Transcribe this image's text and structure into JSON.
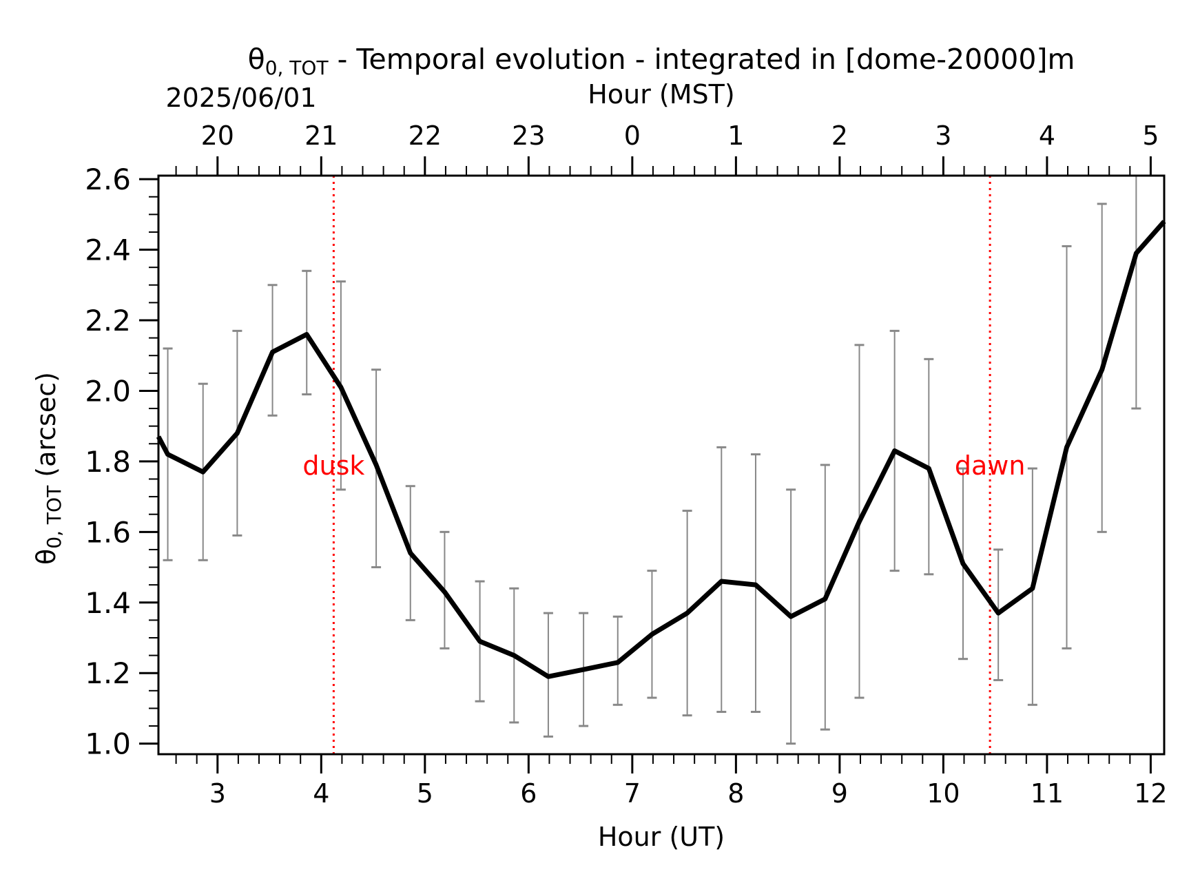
{
  "chart_data": {
    "type": "line",
    "title": "θ0,TOT - Temporal evolution - integrated in [dome-20000]m",
    "title_parts": {
      "symbol": "θ",
      "subscript": "0, TOT",
      "rest": " - Temporal evolution - integrated in [dome-20000]m"
    },
    "xlabel": "Hour (UT)",
    "xlabel_top": "Hour (MST)",
    "date_label": "2025/06/01",
    "ylabel": "θ0, TOT (arcsec)",
    "ylabel_parts": {
      "symbol": "θ",
      "subscript": "0, TOT",
      "rest": " (arcsec)"
    },
    "xlim": [
      2.43,
      12.13
    ],
    "ylim": [
      0.97,
      2.61
    ],
    "x_ticks": [
      3,
      4,
      5,
      6,
      7,
      8,
      9,
      10,
      11,
      12
    ],
    "x_tick_labels": [
      "3",
      "4",
      "5",
      "6",
      "7",
      "8",
      "9",
      "10",
      "11",
      "12"
    ],
    "top_ticks": [
      3,
      4,
      5,
      6,
      7,
      8,
      9,
      10,
      11,
      12
    ],
    "top_tick_labels": [
      "20",
      "21",
      "22",
      "23",
      "0",
      "1",
      "2",
      "3",
      "4",
      "5"
    ],
    "y_ticks": [
      1.0,
      1.2,
      1.4,
      1.6,
      1.8,
      2.0,
      2.2,
      2.4,
      2.6
    ],
    "y_tick_labels": [
      "1.0",
      "1.2",
      "1.4",
      "1.6",
      "1.8",
      "2.0",
      "2.2",
      "2.4",
      "2.6"
    ],
    "grid": false,
    "series": [
      {
        "color": "#000000",
        "x": [
          2.43,
          2.52,
          2.86,
          3.19,
          3.53,
          3.86,
          4.19,
          4.53,
          4.86,
          5.19,
          5.53,
          5.86,
          6.19,
          6.53,
          6.86,
          7.19,
          7.53,
          7.86,
          8.19,
          8.53,
          8.86,
          9.19,
          9.53,
          9.86,
          10.19,
          10.53,
          10.86,
          11.19,
          11.53,
          11.86,
          12.13
        ],
        "y": [
          1.87,
          1.82,
          1.77,
          1.88,
          2.11,
          2.16,
          2.01,
          1.79,
          1.54,
          1.43,
          1.29,
          1.25,
          1.19,
          1.21,
          1.23,
          1.31,
          1.37,
          1.46,
          1.45,
          1.36,
          1.41,
          1.63,
          1.83,
          1.78,
          1.51,
          1.37,
          1.44,
          1.84,
          2.06,
          2.39,
          2.48
        ]
      }
    ],
    "error_bars": {
      "color": "#888888",
      "x": [
        2.52,
        2.86,
        3.19,
        3.53,
        3.86,
        4.19,
        4.53,
        4.86,
        5.19,
        5.53,
        5.86,
        6.19,
        6.53,
        6.86,
        7.19,
        7.53,
        7.86,
        8.19,
        8.53,
        8.86,
        9.19,
        9.53,
        9.86,
        10.19,
        10.53,
        10.86,
        11.19,
        11.53,
        11.86
      ],
      "lower": [
        1.52,
        1.52,
        1.59,
        1.93,
        1.99,
        1.72,
        1.5,
        1.35,
        1.27,
        1.12,
        1.06,
        1.02,
        1.05,
        1.11,
        1.13,
        1.08,
        1.09,
        1.09,
        1.0,
        1.04,
        1.13,
        1.49,
        1.48,
        1.24,
        1.18,
        1.11,
        1.27,
        1.6,
        1.95
      ],
      "upper": [
        2.12,
        2.02,
        2.17,
        2.3,
        2.34,
        2.31,
        2.06,
        1.73,
        1.6,
        1.46,
        1.44,
        1.37,
        1.37,
        1.36,
        1.49,
        1.66,
        1.84,
        1.82,
        1.72,
        1.79,
        2.13,
        2.17,
        2.09,
        1.78,
        1.55,
        1.78,
        2.41,
        2.53,
        2.61
      ]
    },
    "annotations": [
      {
        "text": "dusk",
        "x": 4.12,
        "y": 1.79,
        "color": "#ff0000"
      },
      {
        "text": "dawn",
        "x": 10.45,
        "y": 1.79,
        "color": "#ff0000"
      }
    ],
    "vlines": [
      {
        "x": 4.12,
        "color": "#ff0000",
        "style": "dotted"
      },
      {
        "x": 10.45,
        "color": "#ff0000",
        "style": "dotted"
      }
    ]
  }
}
